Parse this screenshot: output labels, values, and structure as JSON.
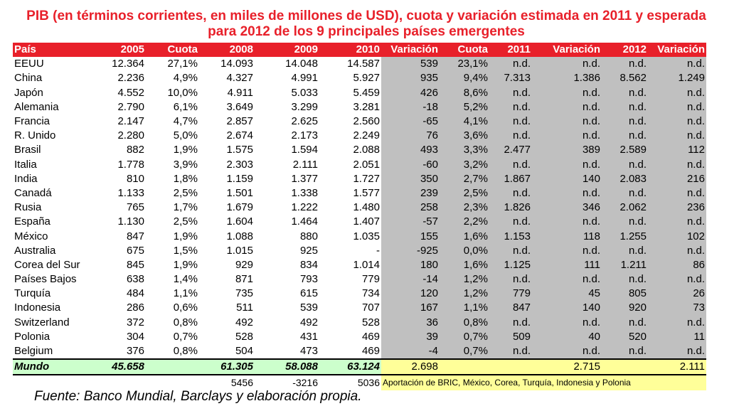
{
  "title": "PIB (en términos corrientes, en miles de millones de USD), cuota y variación estimada en 2011 y esperada para 2012 de los 9 principales países emergentes",
  "headers": [
    "País",
    "2005",
    "Cuota",
    "2008",
    "2009",
    "2010",
    "Variación",
    "Cuota",
    "2011",
    "Variación",
    "2012",
    "Variación"
  ],
  "rows": [
    [
      "EEUU",
      "12.364",
      "27,1%",
      "14.093",
      "14.048",
      "14.587",
      "539",
      "23,1%",
      "n.d.",
      "n.d.",
      "n.d.",
      "n.d."
    ],
    [
      "China",
      "2.236",
      "4,9%",
      "4.327",
      "4.991",
      "5.927",
      "935",
      "9,4%",
      "7.313",
      "1.386",
      "8.562",
      "1.249"
    ],
    [
      "Japón",
      "4.552",
      "10,0%",
      "4.911",
      "5.033",
      "5.459",
      "426",
      "8,6%",
      "n.d.",
      "n.d.",
      "n.d.",
      "n.d."
    ],
    [
      "Alemania",
      "2.790",
      "6,1%",
      "3.649",
      "3.299",
      "3.281",
      "-18",
      "5,2%",
      "n.d.",
      "n.d.",
      "n.d.",
      "n.d."
    ],
    [
      "Francia",
      "2.147",
      "4,7%",
      "2.857",
      "2.625",
      "2.560",
      "-65",
      "4,1%",
      "n.d.",
      "n.d.",
      "n.d.",
      "n.d."
    ],
    [
      "R. Unido",
      "2.280",
      "5,0%",
      "2.674",
      "2.173",
      "2.249",
      "76",
      "3,6%",
      "n.d.",
      "n.d.",
      "n.d.",
      "n.d."
    ],
    [
      "Brasil",
      "882",
      "1,9%",
      "1.575",
      "1.594",
      "2.088",
      "493",
      "3,3%",
      "2.477",
      "389",
      "2.589",
      "112"
    ],
    [
      "Italia",
      "1.778",
      "3,9%",
      "2.303",
      "2.111",
      "2.051",
      "-60",
      "3,2%",
      "n.d.",
      "n.d.",
      "n.d.",
      "n.d."
    ],
    [
      "India",
      "810",
      "1,8%",
      "1.159",
      "1.377",
      "1.727",
      "350",
      "2,7%",
      "1.867",
      "140",
      "2.083",
      "216"
    ],
    [
      "Canadá",
      "1.133",
      "2,5%",
      "1.501",
      "1.338",
      "1.577",
      "239",
      "2,5%",
      "n.d.",
      "n.d.",
      "n.d.",
      "n.d."
    ],
    [
      "Rusia",
      "765",
      "1,7%",
      "1.679",
      "1.222",
      "1.480",
      "258",
      "2,3%",
      "1.826",
      "346",
      "2.062",
      "236"
    ],
    [
      "España",
      "1.130",
      "2,5%",
      "1.604",
      "1.464",
      "1.407",
      "-57",
      "2,2%",
      "n.d.",
      "n.d.",
      "n.d.",
      "n.d."
    ],
    [
      "México",
      "847",
      "1,9%",
      "1.088",
      "880",
      "1.035",
      "155",
      "1,6%",
      "1.153",
      "118",
      "1.255",
      "102"
    ],
    [
      "Australia",
      "675",
      "1,5%",
      "1.015",
      "925",
      "-",
      "-925",
      "0,0%",
      "n.d.",
      "n.d.",
      "n.d.",
      "n.d."
    ],
    [
      "Corea del Sur",
      "845",
      "1,9%",
      "929",
      "834",
      "1.014",
      "180",
      "1,6%",
      "1.125",
      "111",
      "1.211",
      "86"
    ],
    [
      "Países Bajos",
      "638",
      "1,4%",
      "871",
      "793",
      "779",
      "-14",
      "1,2%",
      "n.d.",
      "n.d.",
      "n.d.",
      "n.d."
    ],
    [
      "Turquía",
      "484",
      "1,1%",
      "735",
      "615",
      "734",
      "120",
      "1,2%",
      "779",
      "45",
      "805",
      "26"
    ],
    [
      "Indonesia",
      "286",
      "0,6%",
      "511",
      "539",
      "707",
      "167",
      "1,1%",
      "847",
      "140",
      "920",
      "73"
    ],
    [
      "Switzerland",
      "372",
      "0,8%",
      "492",
      "492",
      "528",
      "36",
      "0,8%",
      "n.d.",
      "n.d.",
      "n.d.",
      "n.d."
    ],
    [
      "Polonia",
      "304",
      "0,7%",
      "528",
      "431",
      "469",
      "39",
      "0,7%",
      "509",
      "40",
      "520",
      "11"
    ],
    [
      "Belgium",
      "376",
      "0,8%",
      "504",
      "473",
      "469",
      "-4",
      "0,7%",
      "n.d.",
      "n.d.",
      "n.d.",
      "n.d."
    ]
  ],
  "mundo": {
    "label": "Mundo",
    "y2005": "45.658",
    "y2008": "61.305",
    "y2009": "58.088",
    "y2010": "63.124",
    "var2010": "2.698",
    "var2011": "2.715",
    "var2012": "2.111"
  },
  "extra": {
    "v2008": "5456",
    "v2009": "-3216",
    "v2010": "5036",
    "note": "Aportación de BRIC, México, Corea, Turquía, Indonesia y Polonia"
  },
  "source": "Fuente: Banco Mundial, Barclays y elaboración propia."
}
